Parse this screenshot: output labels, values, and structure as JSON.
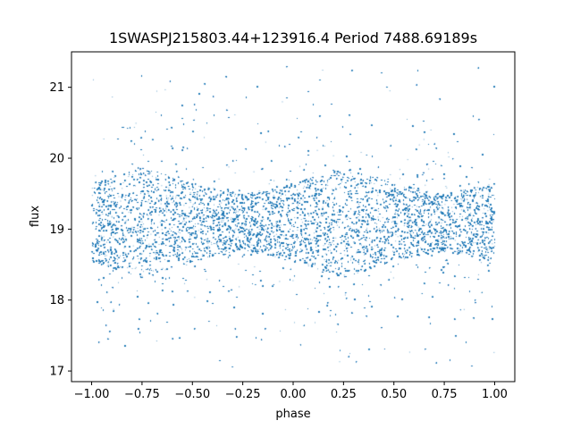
{
  "chart_data": {
    "type": "scatter",
    "title": "1SWASPJ215803.44+123916.4 Period 7488.69189s",
    "xlabel": "phase",
    "ylabel": "flux",
    "xlim": [
      -1.1,
      1.1
    ],
    "ylim": [
      16.85,
      21.5
    ],
    "xticks": [
      -1.0,
      -0.75,
      -0.5,
      -0.25,
      0.0,
      0.25,
      0.5,
      0.75,
      1.0
    ],
    "xtick_labels": [
      "−1.00",
      "−0.75",
      "−0.50",
      "−0.25",
      "0.00",
      "0.25",
      "0.50",
      "0.75",
      "1.00"
    ],
    "yticks": [
      17,
      18,
      19,
      20,
      21
    ],
    "ytick_labels": [
      "17",
      "18",
      "19",
      "20",
      "21"
    ],
    "series": [
      {
        "color": "#1f77b4",
        "marker_size": "tiny",
        "x_range": [
          -1.0,
          1.0
        ],
        "y_range": [
          17.05,
          21.3
        ],
        "core_band": {
          "mean_flux": 19.1,
          "half_width_at_phase": {
            "-1.0": 0.55,
            "-0.75": 0.78,
            "-0.5": 0.55,
            "-0.25": 0.4,
            "0.0": 0.55,
            "0.25": 0.78,
            "0.5": 0.55,
            "0.75": 0.4,
            "1.0": 0.55
          }
        }
      }
    ],
    "grid": false,
    "legend": "none"
  }
}
